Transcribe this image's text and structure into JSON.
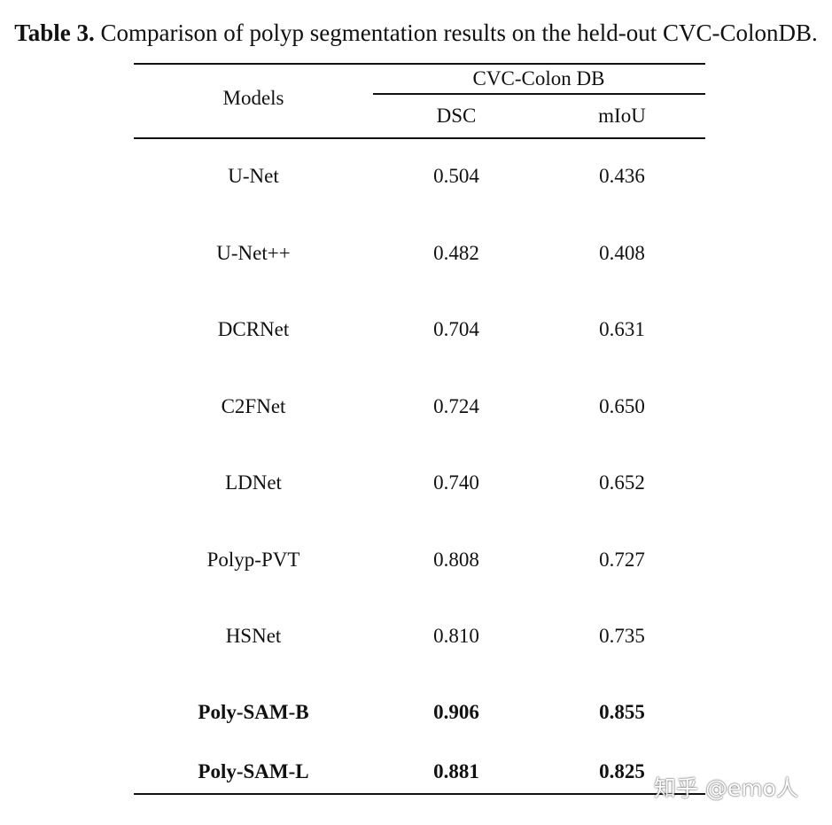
{
  "caption": {
    "label": "Table 3.",
    "text": " Comparison of polyp segmentation results on the held-out CVC-ColonDB."
  },
  "table": {
    "header": {
      "models": "Models",
      "group": "CVC-Colon DB",
      "dsc": "DSC",
      "miou": "mIoU"
    },
    "rows": [
      {
        "model": "U-Net",
        "dsc": "0.504",
        "miou": "0.436",
        "bold": false
      },
      {
        "model": "U-Net++",
        "dsc": "0.482",
        "miou": "0.408",
        "bold": false
      },
      {
        "model": "DCRNet",
        "dsc": "0.704",
        "miou": "0.631",
        "bold": false
      },
      {
        "model": "C2FNet",
        "dsc": "0.724",
        "miou": "0.650",
        "bold": false
      },
      {
        "model": "LDNet",
        "dsc": "0.740",
        "miou": "0.652",
        "bold": false
      },
      {
        "model": "Polyp-PVT",
        "dsc": "0.808",
        "miou": "0.727",
        "bold": false
      },
      {
        "model": "HSNet",
        "dsc": "0.810",
        "miou": "0.735",
        "bold": false
      },
      {
        "model": "Poly-SAM-B",
        "dsc": "0.906",
        "miou": "0.855",
        "bold": true
      },
      {
        "model": "Poly-SAM-L",
        "dsc": "0.881",
        "miou": "0.825",
        "bold": true
      }
    ]
  },
  "watermark": "知乎 @emo人"
}
